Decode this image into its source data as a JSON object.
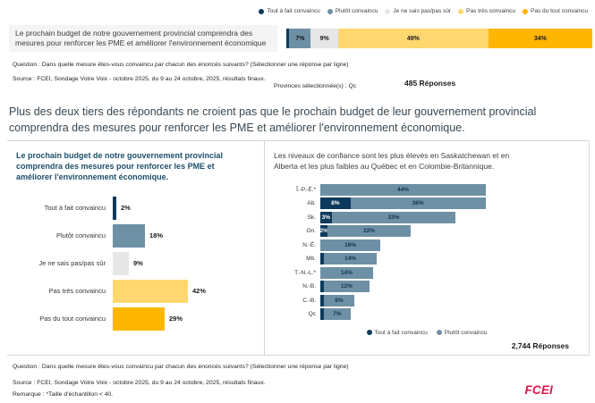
{
  "colors": {
    "navy": "#0d3a5c",
    "steel": "#6e90a5",
    "gray": "#e6e6e6",
    "yellow": "#ffd76e",
    "orange": "#ffb600",
    "accent_red": "#e8104c",
    "title_navy": "#1d4e6b"
  },
  "top": {
    "legend": [
      {
        "label": "Tout à fait convaincu",
        "color": "#0d3a5c"
      },
      {
        "label": "Plutôt convaincu",
        "color": "#6e90a5"
      },
      {
        "label": "Je ne sais pas/pas sûr",
        "color": "#e6e6e6"
      },
      {
        "label": "Pas très convaincu",
        "color": "#ffd76e"
      },
      {
        "label": "Pas du tout convaincu",
        "color": "#ffb600"
      }
    ],
    "question": "Question : Dans quelle mesure êtes-vous convaincu par chacun des énoncés suivants? (Sélectionner une réponse par ligne)",
    "source": "Source : FCEI, Sondage Votre Voix - octobre 2025, du 9 au 24 octobre, 2025, résultats finaux.",
    "provinces_label": "Provinces sélectionnée(s) : Qc"
  },
  "headline": "Plus des deux tiers des répondants ne croient pas que le prochain budget de leur gouvernement provincial comprendra des mesures pour renforcer les PME et améliorer l'environnement économique.",
  "bottom": {
    "question": "Question : Dans quelle mesure êtes-vous convaincu par chacun des énoncés suivants? (Sélectionner une réponse par ligne)",
    "source": "Source : FCEI, Sondage Votre Voix - octobre 2025, du 9 au 24 octobre, 2025, résultats finaux.",
    "remark": "Remarque : *Taille d'échantillon < 40.",
    "logo": "FCEI"
  },
  "chart_data": [
    {
      "type": "bar",
      "variant": "stacked-horizontal-single-row",
      "title": "Le prochain budget de notre gouvernement provincial comprendra des mesures pour renforcer les PME et améliorer l'environnement économique",
      "categories": [
        "Tout à fait convaincu",
        "Plutôt convaincu",
        "Je ne sais pas/pas sûr",
        "Pas très convaincu",
        "Pas du tout convaincu"
      ],
      "values": [
        1,
        7,
        9,
        49,
        34
      ],
      "labels": [
        "",
        "7%",
        "9%",
        "49%",
        "34%"
      ],
      "colors": [
        "#0d3a5c",
        "#6e90a5",
        "#e6e6e6",
        "#ffd76e",
        "#ffb600"
      ],
      "xlim": [
        0,
        100
      ],
      "responses": "485 Réponses"
    },
    {
      "type": "bar",
      "variant": "horizontal",
      "title": "Le prochain budget de notre gouvernement provincial comprendra des mesures pour renforcer les PME et améliorer l'environnement économique.",
      "categories": [
        "Tout à fait convaincu",
        "Plutôt convaincu",
        "Je ne sais pas/pas sûr",
        "Pas très convaincu",
        "Pas du tout convaincu"
      ],
      "values": [
        2,
        18,
        9,
        42,
        29
      ],
      "labels": [
        "2%",
        "18%",
        "9%",
        "42%",
        "29%"
      ],
      "colors": [
        "#0d3a5c",
        "#6e90a5",
        "#e6e6e6",
        "#ffd76e",
        "#ffb600"
      ],
      "xlim": [
        0,
        100
      ]
    },
    {
      "type": "bar",
      "variant": "stacked-horizontal",
      "title": "Les niveaux de confiance sont les plus élevés en Saskatchewan et en Alberta et les plus faibles au Québec et en Colombie-Britannique.",
      "categories": [
        "Î.-P.-É.*",
        "Ab.",
        "Sk.",
        "On.",
        "N.-É.",
        "Mb.",
        "T.-N.-L.*",
        "N.-B.",
        "C.-B.",
        "Qc"
      ],
      "series": [
        {
          "name": "Tout à fait convaincu",
          "color": "#0d3a5c",
          "values": [
            0,
            8,
            3,
            2,
            0,
            1,
            0,
            1,
            1,
            1
          ],
          "labels": [
            "",
            "8%",
            "3%",
            "2%",
            "",
            "",
            "",
            "",
            "",
            ""
          ]
        },
        {
          "name": "Plutôt convaincu",
          "color": "#6e90a5",
          "values": [
            44,
            36,
            33,
            22,
            16,
            14,
            14,
            12,
            8,
            7
          ],
          "labels": [
            "44%",
            "36%",
            "33%",
            "22%",
            "16%",
            "14%",
            "14%",
            "12%",
            "8%",
            "7%"
          ]
        }
      ],
      "xlim": [
        0,
        50
      ],
      "responses": "2,744 Réponses"
    }
  ]
}
